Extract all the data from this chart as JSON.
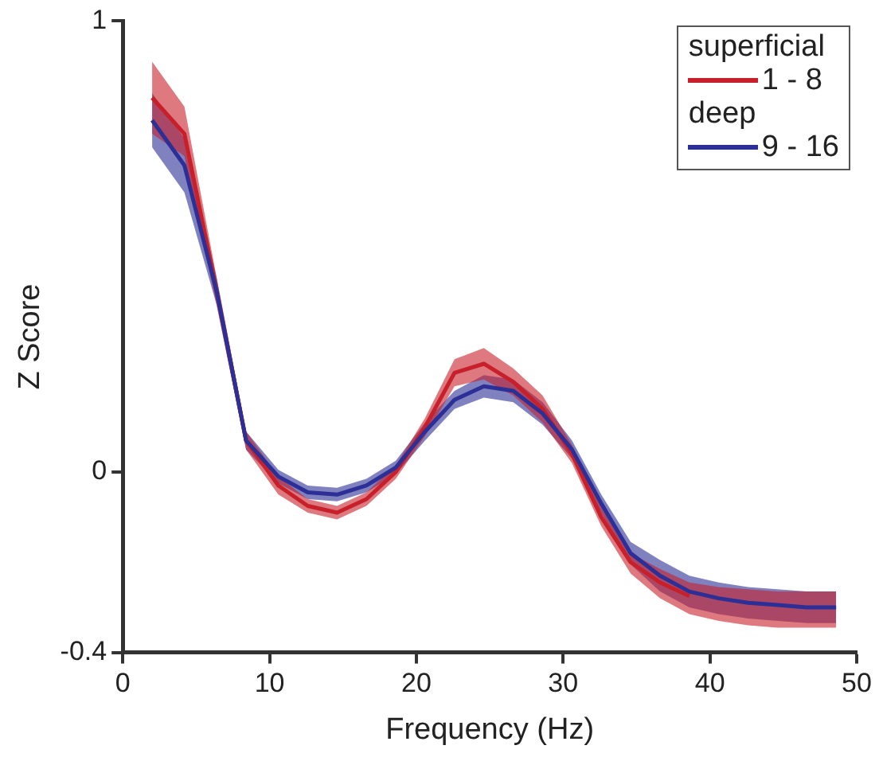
{
  "chart_data": {
    "type": "line",
    "xlabel": "Frequency (Hz)",
    "ylabel": "Z Score",
    "x": [
      2,
      4.2,
      6.4,
      8.4,
      10.6,
      12.6,
      14.6,
      16.6,
      18.6,
      20.6,
      22.6,
      24.6,
      26.6,
      28.6,
      30.6,
      32.6,
      34.6,
      36.6,
      38.6,
      40.6,
      42.6,
      44.6,
      46.6,
      48.6
    ],
    "series": [
      {
        "name": "1 - 8",
        "color": "#c8202a",
        "values": [
          0.83,
          0.75,
          0.4,
          0.07,
          -0.03,
          -0.075,
          -0.09,
          -0.06,
          0,
          0.1,
          0.22,
          0.24,
          0.2,
          0.14,
          0.04,
          -0.1,
          -0.2,
          -0.245,
          -0.275,
          null,
          null,
          null,
          null,
          null
        ],
        "lower": [
          0.75,
          0.7,
          0.37,
          0.05,
          -0.05,
          -0.09,
          -0.105,
          -0.075,
          -0.015,
          0.08,
          0.19,
          0.205,
          0.17,
          0.11,
          0.02,
          -0.12,
          -0.225,
          -0.28,
          -0.315,
          -0.33,
          -0.34,
          -0.345,
          -0.345,
          -0.345
        ],
        "upper": [
          0.91,
          0.81,
          0.43,
          0.09,
          -0.01,
          -0.06,
          -0.075,
          -0.045,
          0.015,
          0.12,
          0.25,
          0.275,
          0.23,
          0.17,
          0.06,
          -0.08,
          -0.18,
          -0.215,
          -0.245,
          -0.255,
          -0.26,
          -0.265,
          -0.265,
          -0.265
        ]
      },
      {
        "name": "9 - 16",
        "color": "#2b2f96",
        "values": [
          0.78,
          0.68,
          0.4,
          0.07,
          -0.01,
          -0.045,
          -0.05,
          -0.03,
          0.01,
          0.09,
          0.16,
          0.19,
          0.18,
          0.13,
          0.05,
          -0.07,
          -0.18,
          -0.23,
          -0.265,
          -0.28,
          -0.29,
          -0.295,
          -0.3,
          -0.3
        ],
        "lower": [
          0.72,
          0.62,
          0.37,
          0.05,
          -0.025,
          -0.06,
          -0.065,
          -0.045,
          -0.005,
          0.07,
          0.14,
          0.165,
          0.155,
          0.105,
          0.03,
          -0.09,
          -0.205,
          -0.265,
          -0.3,
          -0.315,
          -0.325,
          -0.33,
          -0.335,
          -0.335
        ],
        "upper": [
          0.84,
          0.74,
          0.43,
          0.09,
          0.005,
          -0.03,
          -0.035,
          -0.015,
          0.025,
          0.11,
          0.18,
          0.215,
          0.205,
          0.155,
          0.07,
          -0.05,
          -0.155,
          -0.195,
          -0.23,
          -0.245,
          -0.255,
          -0.26,
          -0.265,
          -0.265
        ]
      }
    ],
    "annotations": [
      "superficial",
      "deep"
    ],
    "xlim": [
      0,
      50
    ],
    "xticks": [
      0,
      10,
      20,
      30,
      40,
      50
    ],
    "ylim": [
      -0.4,
      1
    ],
    "yticks": [
      -0.4,
      0,
      1
    ],
    "grid": false,
    "legend": "top right",
    "marker": "none",
    "line_style": "solid"
  }
}
